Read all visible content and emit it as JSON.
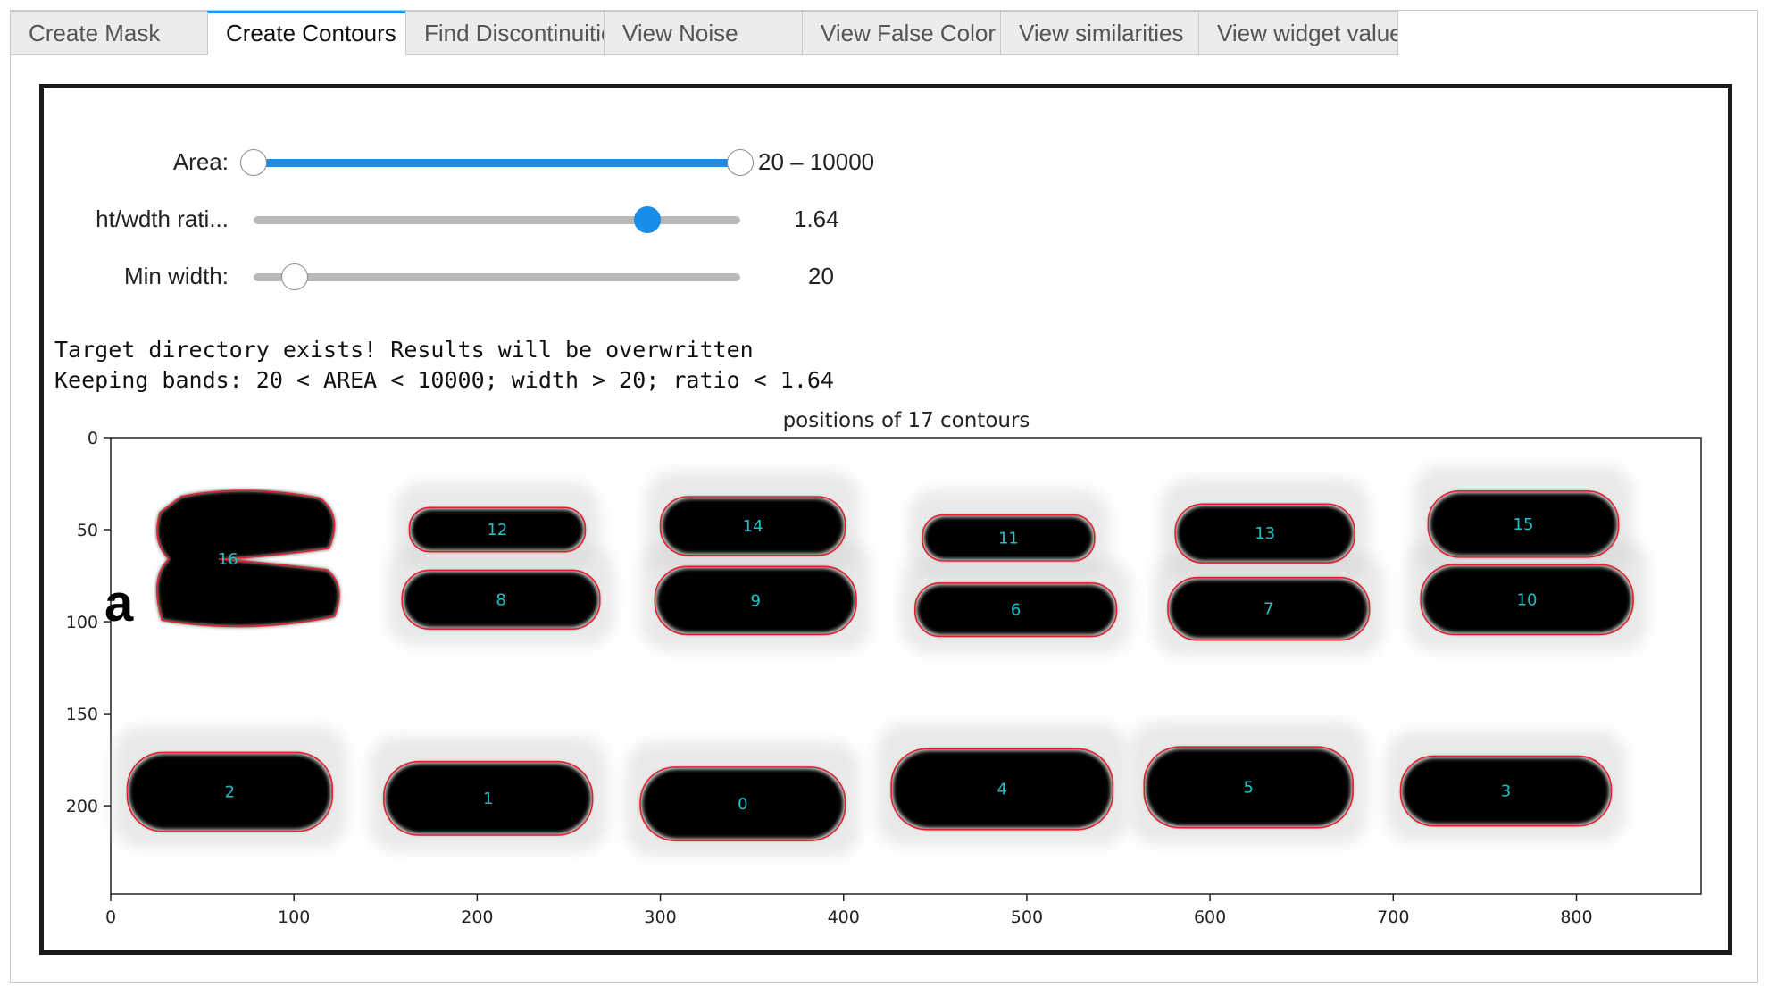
{
  "tabs": [
    {
      "label": "Create Mask",
      "active": false
    },
    {
      "label": "Create Contours",
      "active": true
    },
    {
      "label": "Find Discontinuities",
      "active": false
    },
    {
      "label": "View Noise",
      "active": false
    },
    {
      "label": "View False Color",
      "active": false
    },
    {
      "label": "View similarities",
      "active": false
    },
    {
      "label": "View widget values",
      "active": false
    }
  ],
  "controls": {
    "area": {
      "label": "Area:",
      "min": 20,
      "max": 10000,
      "value_text": "20 – 10000",
      "range_low_fraction": 0.0,
      "range_high_fraction": 1.0
    },
    "ratio": {
      "label": "ht/wdth rati...",
      "value": 1.64,
      "value_text": "1.64",
      "fraction": 0.81
    },
    "min_width": {
      "label": "Min width:",
      "value": 20,
      "value_text": "20",
      "fraction": 0.085
    }
  },
  "output": {
    "line1": "Target directory exists! Results will be overwritten",
    "line2": "Keeping bands: 20 < AREA < 10000; width > 20; ratio < 1.64"
  },
  "colors": {
    "accent": "#1a8de8",
    "contour": "#e0202a",
    "label": "#20c0c8",
    "band": "#000000"
  },
  "chart_data": {
    "type": "image",
    "title": "positions of 17 contours",
    "xlabel": "",
    "ylabel": "",
    "xlim": [
      0,
      868
    ],
    "ylim": [
      248,
      0
    ],
    "xticks": [
      0,
      100,
      200,
      300,
      400,
      500,
      600,
      700,
      800
    ],
    "yticks": [
      0,
      50,
      100,
      150,
      200
    ],
    "side_letter": "a",
    "contours": [
      {
        "id": "0",
        "x": [
          290,
          400
        ],
        "y": [
          180,
          218
        ]
      },
      {
        "id": "1",
        "x": [
          150,
          262
        ],
        "y": [
          177,
          215
        ]
      },
      {
        "id": "2",
        "x": [
          10,
          120
        ],
        "y": [
          172,
          213
        ]
      },
      {
        "id": "3",
        "x": [
          705,
          818
        ],
        "y": [
          174,
          210
        ]
      },
      {
        "id": "4",
        "x": [
          427,
          546
        ],
        "y": [
          170,
          212
        ]
      },
      {
        "id": "5",
        "x": [
          565,
          677
        ],
        "y": [
          169,
          211
        ]
      },
      {
        "id": "6",
        "x": [
          440,
          548
        ],
        "y": [
          80,
          107
        ]
      },
      {
        "id": "7",
        "x": [
          578,
          686
        ],
        "y": [
          77,
          109
        ]
      },
      {
        "id": "8",
        "x": [
          160,
          266
        ],
        "y": [
          73,
          103
        ]
      },
      {
        "id": "9",
        "x": [
          298,
          406
        ],
        "y": [
          71,
          106
        ]
      },
      {
        "id": "10",
        "x": [
          716,
          830
        ],
        "y": [
          70,
          106
        ]
      },
      {
        "id": "11",
        "x": [
          444,
          536
        ],
        "y": [
          43,
          66
        ]
      },
      {
        "id": "12",
        "x": [
          164,
          258
        ],
        "y": [
          39,
          61
        ]
      },
      {
        "id": "13",
        "x": [
          582,
          678
        ],
        "y": [
          37,
          67
        ]
      },
      {
        "id": "14",
        "x": [
          301,
          400
        ],
        "y": [
          33,
          63
        ]
      },
      {
        "id": "15",
        "x": [
          720,
          822
        ],
        "y": [
          30,
          64
        ]
      },
      {
        "id": "16",
        "x": [
          24,
          124
        ],
        "y": [
          28,
          104
        ]
      }
    ]
  }
}
